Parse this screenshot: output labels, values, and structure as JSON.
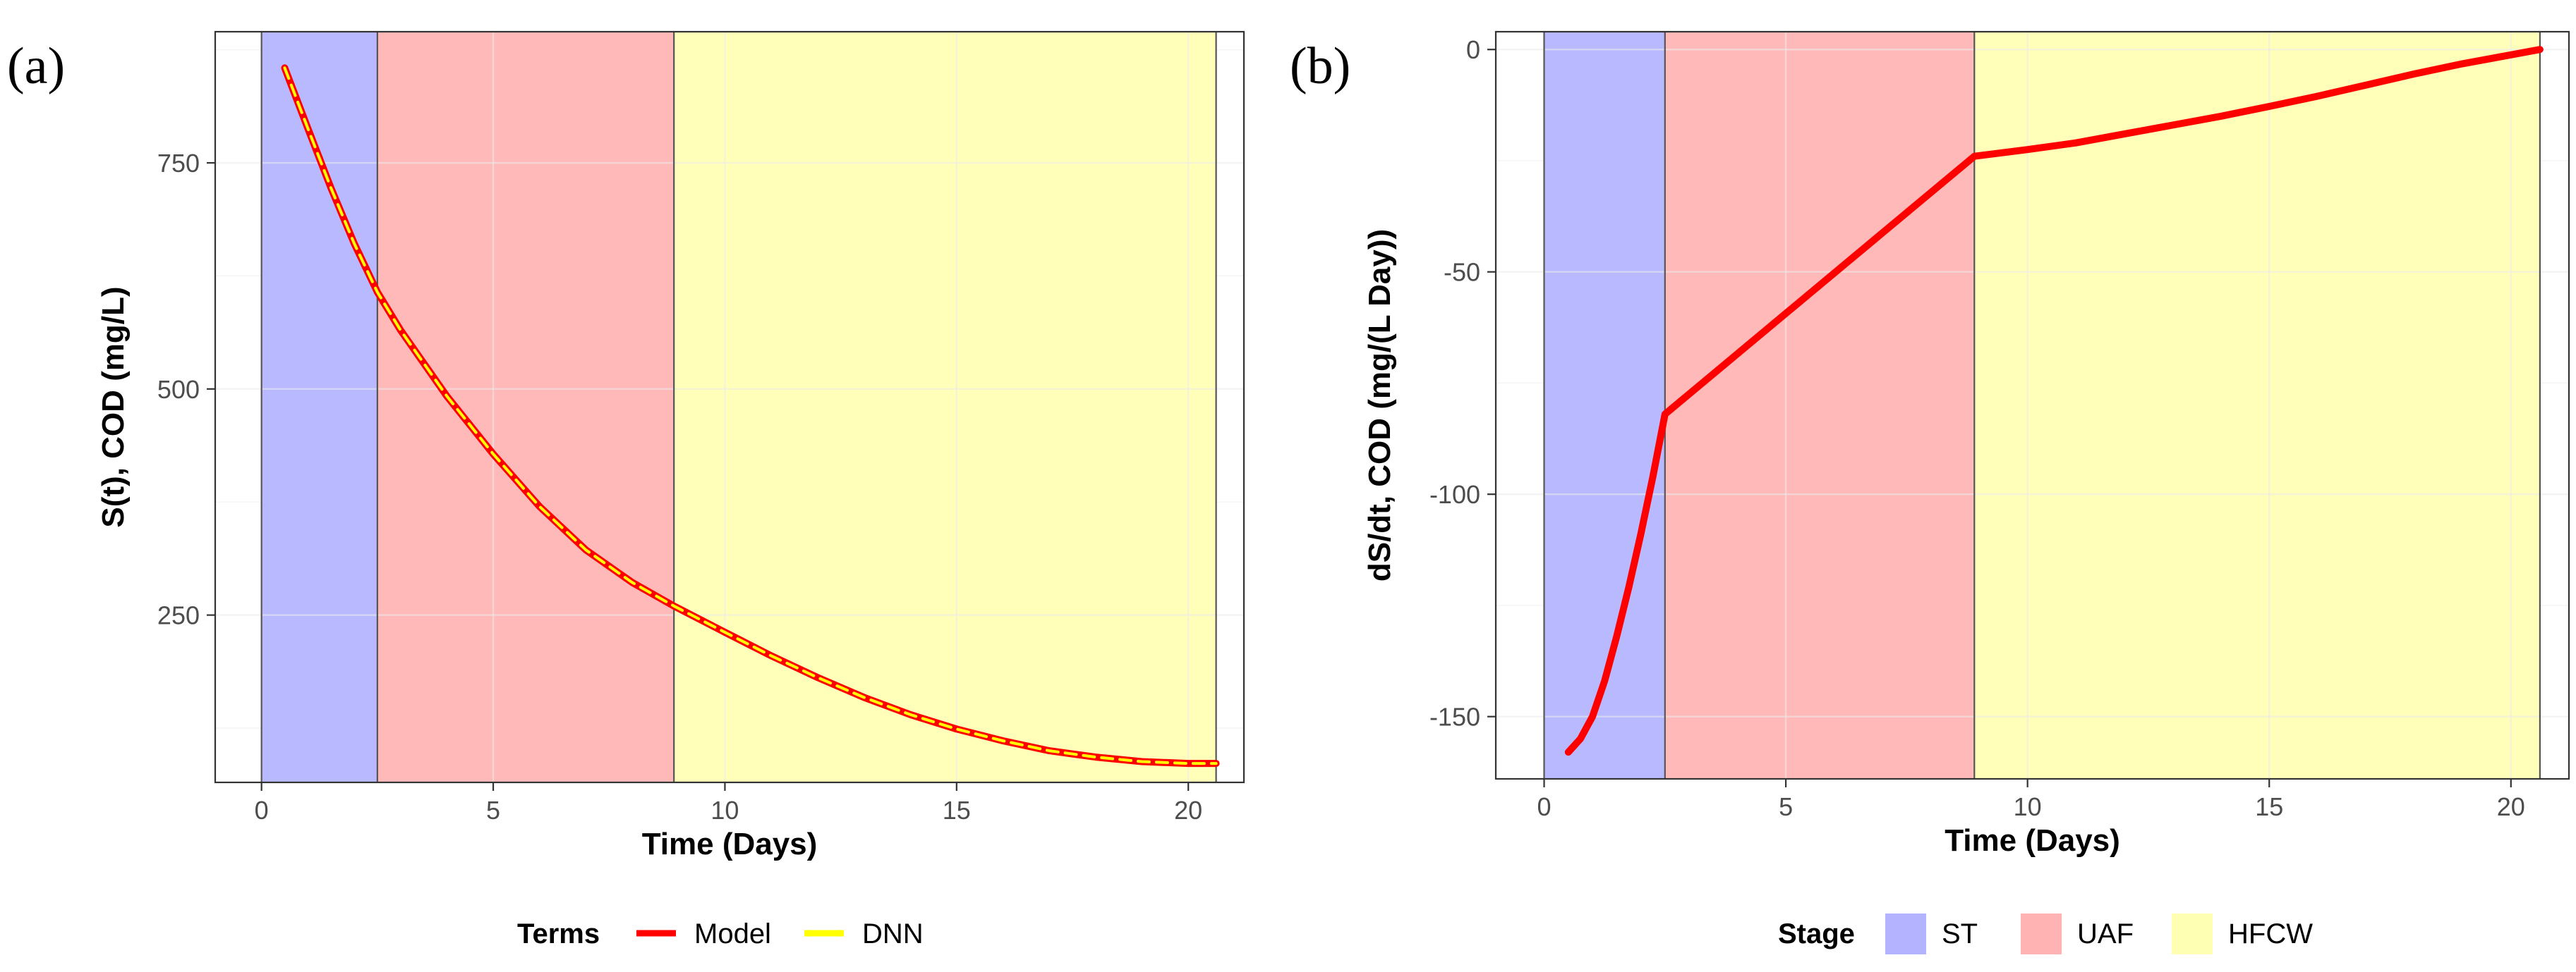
{
  "colors": {
    "model": "#ff0000",
    "dnn": "#ffff00",
    "ST": "#b3b3ff",
    "UAF": "#ffb3b3",
    "HFCW": "#ffffb3"
  },
  "stages": [
    {
      "name": "ST",
      "x0": 0.0,
      "x1": 2.5
    },
    {
      "name": "UAF",
      "x0": 2.5,
      "x1": 8.9
    },
    {
      "name": "HFCW",
      "x0": 8.9,
      "x1": 20.6
    }
  ],
  "chart_data": [
    {
      "type": "line",
      "panel_label": "(a)",
      "xlabel": "Time (Days)",
      "ylabel": "S(t), COD (mg/L)",
      "xlim": [
        -1.0,
        21.2
      ],
      "ylim": [
        65,
        895
      ],
      "xticks": [
        0,
        5,
        10,
        15,
        20
      ],
      "xtick_labels": [
        "0",
        "5",
        "10",
        "15",
        "20"
      ],
      "yticks": [
        250,
        500,
        750
      ],
      "ytick_labels": [
        "250",
        "500",
        "750"
      ],
      "series": [
        {
          "name": "Model",
          "x": [
            0.5,
            1.0,
            1.5,
            2.0,
            2.5,
            3.0,
            4.0,
            5.0,
            6.0,
            7.0,
            8.0,
            8.9,
            10.0,
            11.0,
            12.0,
            13.0,
            14.0,
            15.0,
            16.0,
            17.0,
            18.0,
            19.0,
            20.0,
            20.6
          ],
          "y": [
            855,
            788,
            722,
            661,
            607,
            565,
            492,
            428,
            370,
            322,
            286,
            260,
            231,
            205,
            181,
            159,
            140,
            124,
            111,
            100,
            93,
            88,
            86,
            86
          ]
        },
        {
          "name": "DNN",
          "x": [
            0.5,
            1.0,
            1.5,
            2.0,
            2.5,
            3.0,
            4.0,
            5.0,
            6.0,
            7.0,
            8.0,
            8.9,
            10.0,
            11.0,
            12.0,
            13.0,
            14.0,
            15.0,
            16.0,
            17.0,
            18.0,
            19.0,
            20.0,
            20.6
          ],
          "y": [
            855,
            788,
            722,
            661,
            607,
            565,
            492,
            428,
            370,
            322,
            286,
            260,
            231,
            205,
            181,
            159,
            140,
            124,
            111,
            100,
            93,
            88,
            86,
            86
          ]
        }
      ],
      "legend": {
        "title": "Terms",
        "entries": [
          "Model",
          "DNN"
        ],
        "position": "bottom"
      }
    },
    {
      "type": "line",
      "panel_label": "(b)",
      "xlabel": "Time (Days)",
      "ylabel": "dS/dt, COD (mg/(L Day))",
      "xlim": [
        -1.0,
        21.2
      ],
      "ylim": [
        -164,
        4
      ],
      "xticks": [
        0,
        5,
        10,
        15,
        20
      ],
      "xtick_labels": [
        "0",
        "5",
        "10",
        "15",
        "20"
      ],
      "yticks": [
        -150,
        -100,
        -50,
        0
      ],
      "ytick_labels": [
        "-150",
        "-100",
        "-50",
        "0"
      ],
      "series": [
        {
          "name": "Model",
          "x": [
            0.5,
            0.75,
            1.0,
            1.25,
            1.5,
            1.75,
            2.0,
            2.25,
            2.5,
            8.9,
            10.0,
            11.0,
            12.0,
            13.0,
            14.0,
            15.0,
            16.0,
            17.0,
            18.0,
            19.0,
            20.0,
            20.6
          ],
          "y": [
            -158,
            -155,
            -150,
            -142,
            -132,
            -121,
            -109,
            -96,
            -82,
            -24,
            -22.5,
            -21,
            -19,
            -17,
            -15,
            -12.8,
            -10.5,
            -8,
            -5.5,
            -3.2,
            -1.2,
            0
          ]
        }
      ],
      "legend": {
        "title": "Stage",
        "entries": [
          "ST",
          "UAF",
          "HFCW"
        ],
        "position": "bottom"
      }
    }
  ]
}
